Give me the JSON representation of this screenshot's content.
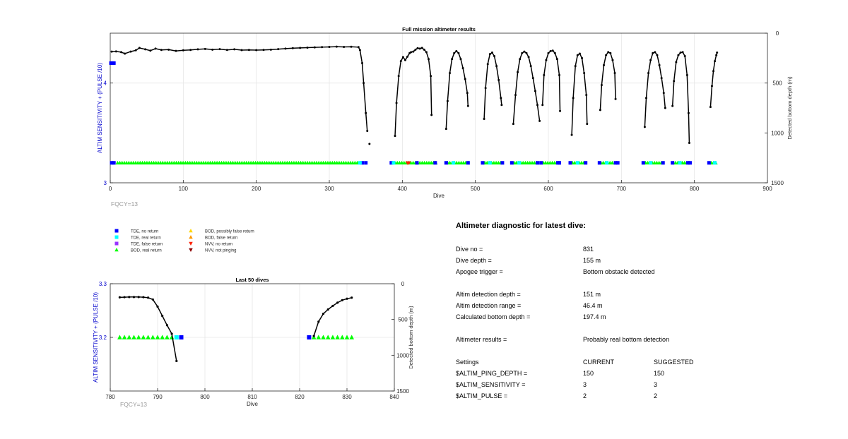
{
  "colors": {
    "track": "#000000",
    "tde_no_return": "#0000ff",
    "tde_real_return": "#00ffff",
    "tde_false_return": "#9933ff",
    "bod_real_return": "#00ff00",
    "bod_possibly_false": "#ffd700",
    "bod_false_return": "#ff9900",
    "nvv_no_return": "#ff2000",
    "nvv_not_pinging": "#8b0000",
    "left_axis": "#0000cc",
    "fqcy": "#999999"
  },
  "fqcy_label": "FQCY=13",
  "legend": [
    {
      "label": "TDE, no return",
      "marker": "square",
      "color": "#0000ff"
    },
    {
      "label": "TDE, real return",
      "marker": "square",
      "color": "#00ffff"
    },
    {
      "label": "TDE, false return",
      "marker": "square",
      "color": "#9933ff"
    },
    {
      "label": "BOD, real return",
      "marker": "triangle-up",
      "color": "#00ff00"
    },
    {
      "label": "BOD, possibly false return",
      "marker": "triangle-up",
      "color": "#ffd700"
    },
    {
      "label": "BOD, false return",
      "marker": "triangle-up",
      "color": "#ff9900"
    },
    {
      "label": "NVV, no return",
      "marker": "triangle-down",
      "color": "#ff2000"
    },
    {
      "label": "NVV, not pinging",
      "marker": "triangle-down",
      "color": "#8b0000"
    }
  ],
  "chart_data": [
    {
      "type": "scatter",
      "title": "Full mission altimeter results",
      "xlabel": "Dive",
      "ylabel": "ALTIM SENSITIVITY + (PULSE /10)",
      "y2label": "Detected bottom depth (m)",
      "xlim": [
        0,
        900
      ],
      "ylim": [
        3,
        4.5
      ],
      "y2lim": [
        1500,
        0
      ],
      "xticks": [
        "0",
        "100",
        "200",
        "300",
        "400",
        "500",
        "600",
        "700",
        "800",
        "900"
      ],
      "yticks": [
        {
          "v": 3,
          "label": "3"
        },
        {
          "v": 4,
          "label": "4"
        }
      ],
      "y2ticks": [
        {
          "v": 0,
          "label": "0"
        },
        {
          "v": 500,
          "label": "500"
        },
        {
          "v": 1000,
          "label": "1000"
        },
        {
          "v": 1500,
          "label": "1500"
        }
      ],
      "grid": true,
      "track_segments": [
        {
          "x": [
            2,
            8,
            15,
            20,
            28,
            35,
            40,
            48,
            55,
            62,
            70,
            80,
            90,
            100,
            110,
            120,
            130,
            140,
            150,
            160,
            170,
            180,
            190,
            200,
            210,
            220,
            230,
            240,
            250,
            260,
            270,
            280,
            290,
            300,
            310,
            320,
            330,
            340,
            342,
            345,
            347,
            350,
            352
          ],
          "y": [
            185,
            183,
            190,
            205,
            185,
            172,
            148,
            162,
            175,
            155,
            168,
            165,
            178,
            172,
            168,
            162,
            158,
            165,
            160,
            168,
            162,
            170,
            168,
            170,
            168,
            165,
            160,
            155,
            150,
            148,
            145,
            142,
            140,
            138,
            135,
            138,
            136,
            140,
            170,
            300,
            500,
            800,
            980
          ]
        },
        {
          "x": [
            355
          ],
          "y": [
            1110
          ]
        },
        {
          "x": [
            390,
            392,
            395,
            398,
            401,
            404,
            407,
            410,
            412,
            415,
            418,
            421,
            424,
            427,
            430,
            433,
            436,
            439,
            440
          ],
          "y": [
            1030,
            700,
            430,
            280,
            240,
            270,
            235,
            200,
            190,
            185,
            165,
            150,
            155,
            148,
            165,
            190,
            260,
            430,
            820
          ]
        },
        {
          "x": [
            460,
            462,
            465,
            468,
            471,
            474,
            477,
            480,
            483,
            486,
            489,
            490
          ],
          "y": [
            960,
            680,
            400,
            260,
            200,
            180,
            200,
            260,
            350,
            460,
            600,
            730
          ]
        },
        {
          "x": [
            512,
            514,
            517,
            520,
            523,
            526,
            529,
            532,
            535,
            536
          ],
          "y": [
            860,
            550,
            310,
            210,
            195,
            230,
            330,
            470,
            650,
            720
          ]
        },
        {
          "x": [
            552,
            555,
            558,
            561,
            564,
            567,
            570,
            573,
            576,
            579,
            582,
            585,
            588
          ],
          "y": [
            910,
            620,
            390,
            260,
            200,
            185,
            200,
            240,
            330,
            450,
            580,
            720,
            880
          ]
        },
        {
          "x": [
            592,
            594,
            597,
            600,
            603,
            606,
            609,
            612,
            615,
            616
          ],
          "y": [
            720,
            420,
            270,
            200,
            180,
            175,
            200,
            260,
            420,
            780
          ]
        },
        {
          "x": [
            632,
            634,
            637,
            640,
            643,
            646,
            649,
            652,
            653
          ],
          "y": [
            1020,
            650,
            330,
            220,
            205,
            250,
            400,
            620,
            910
          ]
        },
        {
          "x": [
            671,
            673,
            676,
            679,
            682,
            685,
            688,
            691,
            692
          ],
          "y": [
            770,
            520,
            320,
            220,
            190,
            200,
            270,
            400,
            660
          ]
        },
        {
          "x": [
            732,
            734,
            737,
            740,
            743,
            746,
            749,
            752,
            755,
            758,
            760
          ],
          "y": [
            940,
            650,
            400,
            270,
            200,
            190,
            220,
            320,
            450,
            600,
            750
          ]
        },
        {
          "x": [
            770,
            772,
            775,
            778,
            781,
            784,
            787,
            790,
            792,
            793
          ],
          "y": [
            730,
            480,
            290,
            220,
            195,
            190,
            230,
            420,
            800,
            1100
          ]
        },
        {
          "x": [
            822,
            824,
            826,
            828,
            830,
            831
          ],
          "y": [
            740,
            530,
            380,
            280,
            220,
            195
          ]
        }
      ],
      "marker_bands": [
        {
          "kind": "bod_real",
          "y": 3.2,
          "x_from": 10,
          "x_to": 340
        },
        {
          "kind": "bod_real",
          "y": 3.2,
          "x_from": 390,
          "x_to": 446
        },
        {
          "kind": "bod_real",
          "y": 3.2,
          "x_from": 462,
          "x_to": 490
        },
        {
          "kind": "bod_real",
          "y": 3.2,
          "x_from": 513,
          "x_to": 536
        },
        {
          "kind": "bod_real",
          "y": 3.2,
          "x_from": 553,
          "x_to": 584
        },
        {
          "kind": "bod_real",
          "y": 3.2,
          "x_from": 593,
          "x_to": 612
        },
        {
          "kind": "bod_real",
          "y": 3.2,
          "x_from": 633,
          "x_to": 650
        },
        {
          "kind": "bod_real",
          "y": 3.2,
          "x_from": 672,
          "x_to": 690
        },
        {
          "kind": "bod_real",
          "y": 3.2,
          "x_from": 733,
          "x_to": 756
        },
        {
          "kind": "bod_real",
          "y": 3.2,
          "x_from": 771,
          "x_to": 790
        },
        {
          "kind": "bod_real",
          "y": 3.2,
          "x_from": 823,
          "x_to": 832
        }
      ],
      "markers": [
        {
          "kind": "tde_no_return",
          "x": [
            2,
            5,
            345,
            350,
            385,
            420,
            445,
            460,
            490,
            510,
            537,
            550,
            585,
            590,
            613,
            615,
            630,
            651,
            670,
            692,
            695,
            730,
            757,
            770,
            791,
            794,
            820
          ]
        },
        {
          "kind": "tde_no_return",
          "x": [
            1,
            3,
            5
          ],
          "y_override": 4.2
        },
        {
          "kind": "tde_real_return",
          "x": [
            342,
            388,
            470,
            520,
            560,
            640,
            680,
            740,
            780,
            828
          ]
        },
        {
          "kind": "nvv_no_return",
          "x": [
            407,
            409
          ]
        }
      ]
    },
    {
      "type": "scatter",
      "title": "Last 50 dives",
      "xlabel": "Dive",
      "ylabel": "ALTIM SENSITIVITY + (PULSE /10)",
      "y2label": "Detected bottom depth (m)",
      "xlim": [
        780,
        840
      ],
      "ylim": [
        3.1,
        3.3
      ],
      "y2lim": [
        1500,
        0
      ],
      "xticks": [
        "780",
        "790",
        "800",
        "810",
        "820",
        "830",
        "840"
      ],
      "yticks": [
        {
          "v": 3.2,
          "label": "3.2"
        },
        {
          "v": 3.3,
          "label": "3.3"
        }
      ],
      "y2ticks": [
        {
          "v": 0,
          "label": "0"
        },
        {
          "v": 500,
          "label": "500"
        },
        {
          "v": 1000,
          "label": "1000"
        },
        {
          "v": 1500,
          "label": "1500"
        }
      ],
      "grid": true,
      "track_segments": [
        {
          "x": [
            782,
            783,
            784,
            785,
            786,
            787,
            788,
            789,
            790,
            791,
            792,
            793,
            794
          ],
          "y": [
            190,
            188,
            186,
            186,
            186,
            188,
            195,
            220,
            320,
            450,
            580,
            700,
            1080
          ]
        },
        {
          "x": [
            823,
            824,
            825,
            826,
            827,
            828,
            829,
            830,
            831
          ],
          "y": [
            730,
            530,
            420,
            360,
            310,
            265,
            230,
            210,
            195
          ]
        }
      ],
      "markers": [
        {
          "kind": "bod_real",
          "x": [
            782,
            783,
            784,
            785,
            786,
            787,
            788,
            789,
            790,
            791,
            792,
            793
          ],
          "y": 3.2
        },
        {
          "kind": "tde_real_return",
          "x": [
            794
          ],
          "y": 3.2
        },
        {
          "kind": "tde_no_return",
          "x": [
            795
          ],
          "y": 3.2
        },
        {
          "kind": "tde_no_return",
          "x": [
            822
          ],
          "y": 3.2
        },
        {
          "kind": "bod_real",
          "x": [
            823,
            824,
            825,
            826,
            827,
            828,
            829,
            830,
            831
          ],
          "y": 3.2
        }
      ]
    }
  ],
  "diagnostic": {
    "title": "Altimeter diagnostic for latest dive:",
    "rows": [
      {
        "label": "Dive no =",
        "value": "831"
      },
      {
        "label": "Dive depth =",
        "value": "155 m"
      },
      {
        "label": "Apogee trigger =",
        "value": "Bottom obstacle detected"
      },
      {
        "label": "Altim detection depth =",
        "value": "151 m"
      },
      {
        "label": "Altim detection range =",
        "value": "46.4 m"
      },
      {
        "label": "Calculated bottom depth =",
        "value": "197.4 m"
      },
      {
        "label": "Altimeter results =",
        "value": "Probably real bottom detection"
      }
    ],
    "settings_header": {
      "label": "Settings",
      "current": "CURRENT",
      "suggested": "SUGGESTED"
    },
    "settings": [
      {
        "label": "$ALTIM_PING_DEPTH =",
        "current": "150",
        "suggested": "150"
      },
      {
        "label": "$ALTIM_SENSITIVITY =",
        "current": "3",
        "suggested": "3"
      },
      {
        "label": "$ALTIM_PULSE =",
        "current": "2",
        "suggested": "2"
      }
    ]
  }
}
